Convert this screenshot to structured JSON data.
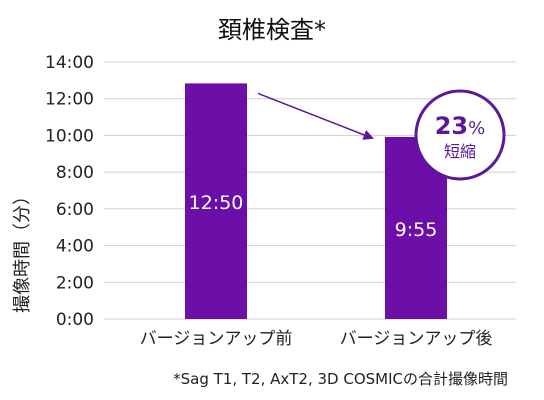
{
  "title": "頚椎検査*",
  "footnote": "*Sag T1, T2, AxT2, 3D COSMICの合計撮像時間",
  "callout": {
    "percent_number": "23",
    "percent_sign": "%",
    "label": "短縮"
  },
  "colors": {
    "bar": "#6b0fa8",
    "accent": "#5a189a",
    "grid": "#d0d0d0",
    "text": "#222222"
  },
  "chart_data": {
    "type": "bar",
    "title": "頚椎検査*",
    "ylabel": "撮像時間（分）",
    "xlabel": "",
    "categories": [
      "バージョンアップ前",
      "バージョンアップ後"
    ],
    "values": [
      12.8333,
      9.9167
    ],
    "value_labels": [
      "12:50",
      "9:55"
    ],
    "ylim": [
      0,
      14
    ],
    "y_ticks": [
      0,
      2,
      4,
      6,
      8,
      10,
      12,
      14
    ],
    "y_tick_labels": [
      "0:00",
      "2:00",
      "4:00",
      "6:00",
      "8:00",
      "10:00",
      "12:00",
      "14:00"
    ],
    "grid": true,
    "annotation": "23% 短縮"
  }
}
